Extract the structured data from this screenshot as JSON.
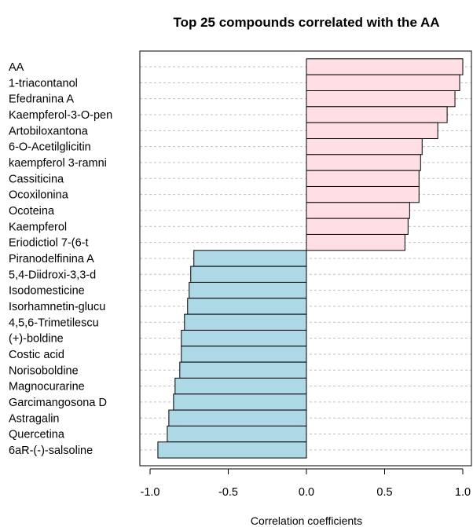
{
  "chart_data": {
    "type": "bar",
    "orientation": "horizontal",
    "title": "Top 25 compounds correlated with the AA",
    "xlabel": "Correlation coefficients",
    "ylabel": "",
    "xlim": [
      -1.05,
      1.05
    ],
    "x_ticks": [
      -1.0,
      -0.5,
      0.0,
      0.5,
      1.0
    ],
    "x_tick_labels": [
      "-1.0",
      "-0.5",
      "0.0",
      "0.5",
      "1.0"
    ],
    "grid": "dashed horizontal lines at each category",
    "colors": {
      "positive": "#ffdfe3",
      "negative": "#add8e6",
      "border": "#000000",
      "grid": "#bfbfbf"
    },
    "categories": [
      "AA",
      "1-triacontanol",
      "Efedranina A",
      "Kaempferol-3-O-pen",
      "Artobiloxantona",
      "6-O-Acetilglicitin",
      "kaempferol 3-ramni",
      "Cassiticina",
      "Ocoxilonina",
      "Ocoteina",
      "Kaempferol",
      "Eriodictiol 7-(6-t",
      "Piranodelfinina A",
      "5,4-Diidroxi-3,3-d",
      "Isodomesticine",
      "Isorhamnetin-glucu",
      "4,5,6-Trimetilescu",
      "(+)-boldine",
      "Costic acid",
      "Norisoboldine",
      "Magnocurarine",
      "Garcimangosona D",
      "Astragalin",
      "Quercetina",
      "6aR-(-)-salsoline"
    ],
    "values": [
      1.0,
      0.98,
      0.95,
      0.9,
      0.84,
      0.74,
      0.73,
      0.72,
      0.72,
      0.66,
      0.65,
      0.63,
      -0.72,
      -0.74,
      -0.75,
      -0.76,
      -0.78,
      -0.8,
      -0.8,
      -0.81,
      -0.84,
      -0.85,
      -0.88,
      -0.89,
      -0.95
    ]
  }
}
